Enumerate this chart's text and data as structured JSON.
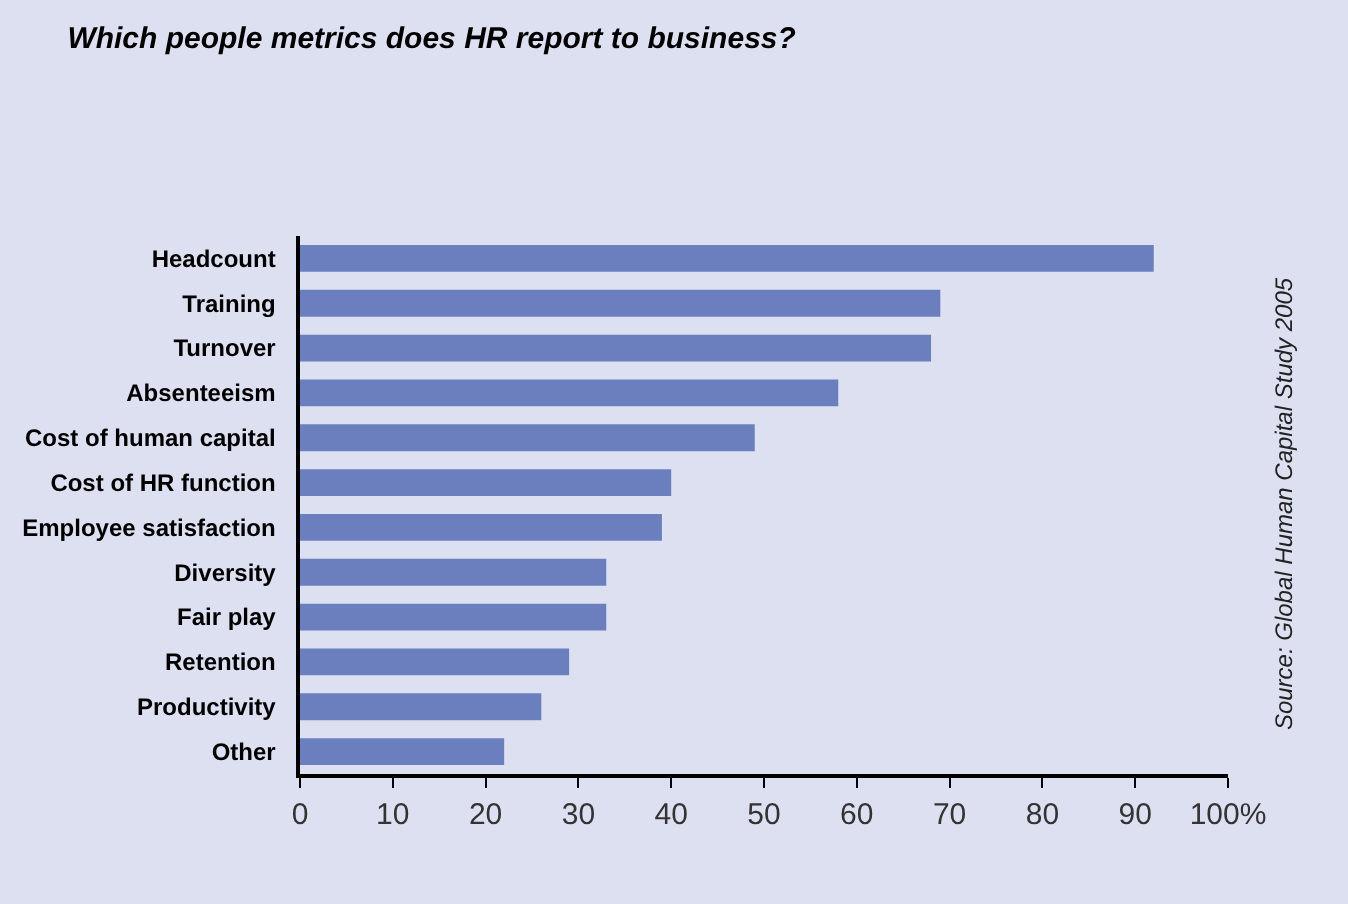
{
  "chart_data": {
    "type": "bar",
    "orientation": "horizontal",
    "title": "Which people metrics does HR report to business?",
    "categories": [
      "Headcount",
      "Training",
      "Turnover",
      "Absenteeism",
      "Cost of human capital",
      "Cost of HR function",
      "Employee satisfaction",
      "Diversity",
      "Fair play",
      "Retention",
      "Productivity",
      "Other"
    ],
    "values": [
      92,
      69,
      68,
      58,
      49,
      40,
      39,
      33,
      33,
      29,
      26,
      22
    ],
    "color": "#6b7fbf",
    "xlim": [
      0,
      100
    ],
    "xticks": [
      0,
      10,
      20,
      30,
      40,
      50,
      60,
      70,
      80,
      90,
      {
        "value": 100,
        "label": "100%"
      }
    ],
    "grid": false,
    "annotations": [
      "Source: Global Human Capital Study 2005"
    ]
  }
}
